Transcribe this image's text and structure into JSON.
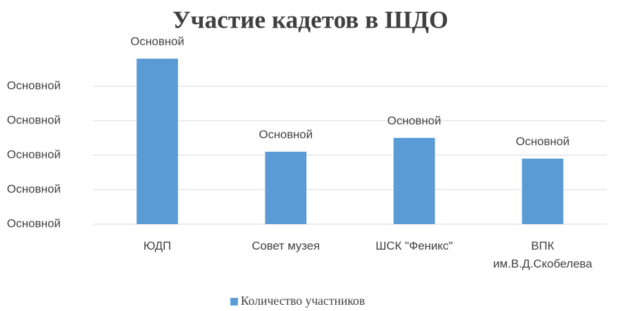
{
  "chart_data": {
    "type": "bar",
    "title": "Участие кадетов в ШДО",
    "categories": [
      "ЮДП",
      "Совет музея",
      "ШСК \"Феникс\"",
      "ВПК им.В.Д.Скобелева"
    ],
    "series": [
      {
        "name": "Количество участников",
        "color": "#5b9bd5",
        "values": [
          48,
          21,
          25,
          19
        ],
        "value_labels": [
          "Основной",
          "Основной",
          "Основной",
          "Основной"
        ]
      }
    ],
    "ylim": [
      0,
      50
    ],
    "yticks": [
      {
        "value": 0,
        "label": "Основной"
      },
      {
        "value": 10,
        "label": "Основной"
      },
      {
        "value": 20,
        "label": "Основной"
      },
      {
        "value": 30,
        "label": "Основной"
      },
      {
        "value": 40,
        "label": "Основной"
      }
    ],
    "grid": true,
    "legend": "bottom"
  }
}
